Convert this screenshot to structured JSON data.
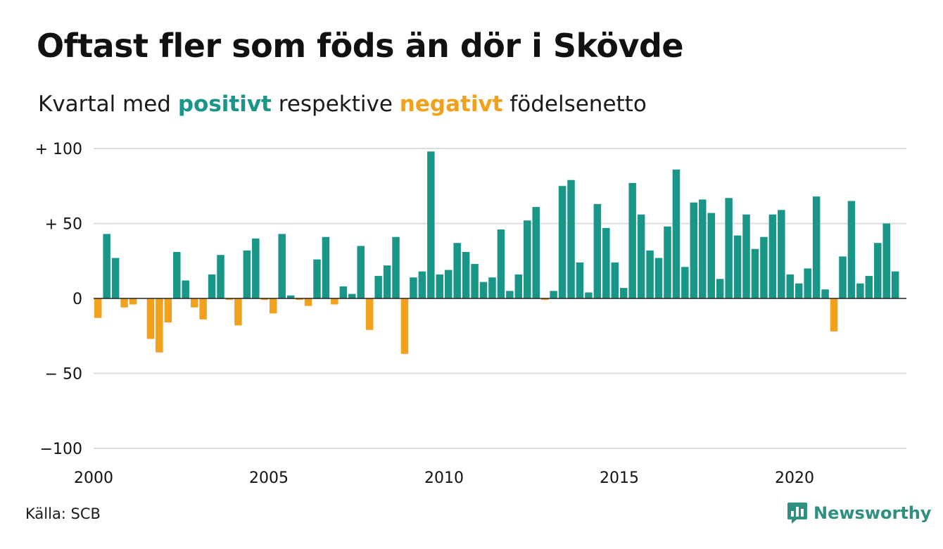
{
  "header": {
    "title": "Oftast fler som föds än dör i Skövde",
    "subtitle_prefix": "Kvartal med",
    "subtitle_positive": "positivt",
    "subtitle_middle": "respektive",
    "subtitle_negative": "negativt",
    "subtitle_suffix": "födelsenetto"
  },
  "footer": {
    "source": "Källa: SCB",
    "logo_text": "Newsworthy",
    "logo_icon": "bar-chart-speech-bubble-icon"
  },
  "colors": {
    "positive": "#1a9688",
    "negative": "#f2a11d",
    "grid": "#dddddd",
    "axis": "#222222",
    "logo": "#2f8f80"
  },
  "chart_data": {
    "type": "bar",
    "title": "Oftast fler som föds än dör i Skövde",
    "subtitle": "Kvartal med positivt respektive negativt födelsenetto",
    "xlabel": "",
    "ylabel": "",
    "ylim": [
      -100,
      100
    ],
    "yticks": [
      100,
      50,
      0,
      -50,
      -100
    ],
    "ytick_labels": [
      "+ 100",
      "+  50",
      "0",
      "− 50",
      "−100"
    ],
    "x_tick_labels": [
      "2000",
      "2005",
      "2010",
      "2015",
      "2020"
    ],
    "x_start_year": 2000,
    "periods_per_year": 4,
    "grid": true,
    "legend": "in subtitle",
    "values": [
      -13,
      43,
      27,
      -6,
      -4,
      0,
      -27,
      -36,
      -16,
      31,
      12,
      -6,
      -14,
      16,
      29,
      -1,
      -18,
      32,
      40,
      -1,
      -10,
      43,
      2,
      -1,
      -5,
      26,
      41,
      -4,
      8,
      3,
      35,
      -21,
      15,
      22,
      41,
      -37,
      14,
      18,
      98,
      16,
      19,
      37,
      31,
      23,
      11,
      14,
      46,
      5,
      16,
      52,
      61,
      -1,
      5,
      75,
      79,
      24,
      4,
      63,
      47,
      24,
      7,
      77,
      56,
      32,
      27,
      48,
      86,
      21,
      64,
      66,
      57,
      13,
      67,
      42,
      56,
      33,
      41,
      56,
      59,
      16,
      10,
      20,
      68,
      6,
      -22,
      28,
      65,
      10,
      15,
      37,
      50,
      18
    ]
  }
}
